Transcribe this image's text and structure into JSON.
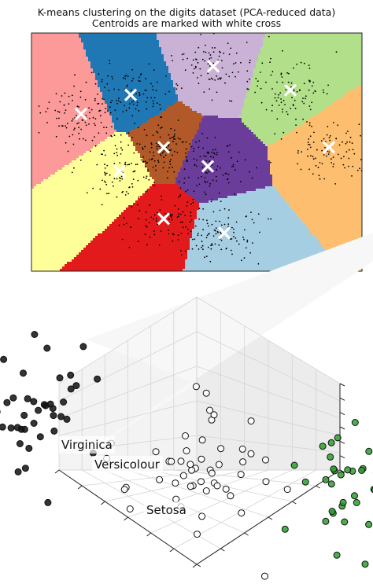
{
  "chart_data": [
    {
      "type": "scatter",
      "title": "K-means clustering on the digits dataset (PCA-reduced data)",
      "subtitle": "Centroids are marked with white cross",
      "xlim": [
        -30,
        30
      ],
      "ylim": [
        -25,
        25
      ],
      "grid": false,
      "regions": [
        {
          "color": "#fb9a99",
          "centroid": [
            -21,
            8
          ]
        },
        {
          "color": "#1f78b4",
          "centroid": [
            -12,
            12
          ]
        },
        {
          "color": "#cab2d6",
          "centroid": [
            3,
            18
          ]
        },
        {
          "color": "#b2df8a",
          "centroid": [
            17,
            13
          ]
        },
        {
          "color": "#fdbf6f",
          "centroid": [
            24,
            1
          ]
        },
        {
          "color": "#ffff99",
          "centroid": [
            -14,
            -4
          ]
        },
        {
          "color": "#b15928",
          "centroid": [
            -6,
            1
          ]
        },
        {
          "color": "#6a3d9a",
          "centroid": [
            2,
            -3
          ]
        },
        {
          "color": "#e31a1c",
          "centroid": [
            -6,
            -14
          ]
        },
        {
          "color": "#a6cee3",
          "centroid": [
            5,
            -17
          ]
        }
      ],
      "centroid_marker": "white cross",
      "points_color": "#000000"
    },
    {
      "type": "scatter",
      "projection": "3d",
      "labels": [
        "Virginica",
        "Versicolour",
        "Setosa"
      ],
      "series": [
        {
          "color": "#111111",
          "centroid": [
            -0.8,
            0.6,
            0.6
          ],
          "count": 50
        },
        {
          "color": "#ffffff",
          "centroid": [
            0.2,
            0.2,
            0.3
          ],
          "count": 50
        },
        {
          "color": "#2ca02c",
          "centroid": [
            0.9,
            -0.4,
            0.0
          ],
          "count": 50
        }
      ],
      "grid": true
    }
  ]
}
